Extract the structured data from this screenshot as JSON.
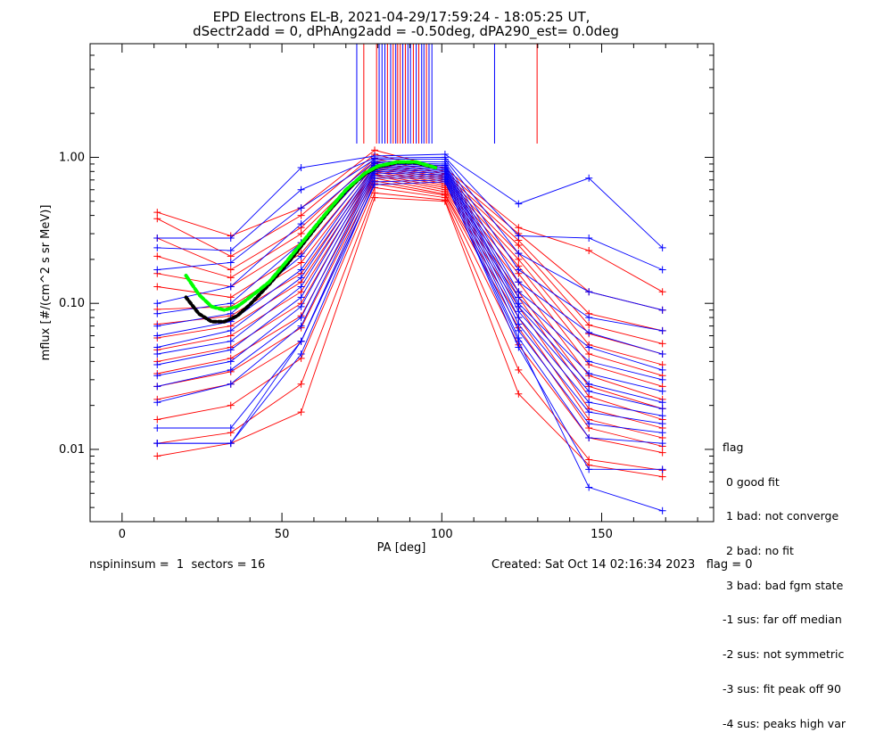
{
  "chart_data": {
    "type": "line",
    "title": "EPD Electrons EL-B, 2021-04-29/17:59:24 - 18:05:25 UT,",
    "subtitle": "dSectr2add = 0, dPhAng2add = -0.50deg, dPA290_est=   0.0deg",
    "xlabel": "PA [deg]",
    "ylabel": "mflux [#/(cm^2 s sr MeV)]",
    "xlim": [
      -10,
      185
    ],
    "ylim": [
      0.0032,
      6.0
    ],
    "yscale": "log",
    "x_ticks": [
      0,
      50,
      100,
      150
    ],
    "x_tick_labels": [
      "0",
      "50",
      "100",
      "150"
    ],
    "y_ticks": [
      0.01,
      0.1,
      1.0
    ],
    "y_tick_labels": [
      "0.01",
      "0.10",
      "1.00"
    ],
    "pa_bins": [
      11,
      34,
      56,
      79,
      101,
      124,
      146,
      169
    ],
    "series": [
      {
        "color": "#ff0000",
        "values": [
          0.42,
          0.29,
          0.45,
          1.12,
          0.84,
          0.33,
          0.23,
          0.12
        ]
      },
      {
        "color": "#ff0000",
        "values": [
          0.38,
          0.21,
          0.4,
          1.05,
          0.8,
          0.3,
          0.12,
          0.09
        ]
      },
      {
        "color": "#ff0000",
        "values": [
          0.28,
          0.17,
          0.33,
          0.98,
          0.77,
          0.27,
          0.085,
          0.065
        ]
      },
      {
        "color": "#ff0000",
        "values": [
          0.21,
          0.15,
          0.3,
          0.94,
          0.74,
          0.25,
          0.071,
          0.053
        ]
      },
      {
        "color": "#ff0000",
        "values": [
          0.16,
          0.13,
          0.26,
          0.91,
          0.72,
          0.22,
          0.062,
          0.045
        ]
      },
      {
        "color": "#ff0000",
        "values": [
          0.13,
          0.11,
          0.22,
          0.88,
          0.7,
          0.2,
          0.052,
          0.038
        ]
      },
      {
        "color": "#ff0000",
        "values": [
          0.091,
          0.095,
          0.19,
          0.85,
          0.68,
          0.18,
          0.045,
          0.032
        ]
      },
      {
        "color": "#ff0000",
        "values": [
          0.072,
          0.082,
          0.16,
          0.82,
          0.66,
          0.16,
          0.038,
          0.027
        ]
      },
      {
        "color": "#ff0000",
        "values": [
          0.058,
          0.07,
          0.14,
          0.8,
          0.64,
          0.14,
          0.032,
          0.022
        ]
      },
      {
        "color": "#ff0000",
        "values": [
          0.048,
          0.06,
          0.12,
          0.77,
          0.62,
          0.12,
          0.027,
          0.019
        ]
      },
      {
        "color": "#ff0000",
        "values": [
          0.04,
          0.05,
          0.1,
          0.75,
          0.6,
          0.11,
          0.023,
          0.016
        ]
      },
      {
        "color": "#ff0000",
        "values": [
          0.033,
          0.042,
          0.082,
          0.72,
          0.58,
          0.095,
          0.019,
          0.014
        ]
      },
      {
        "color": "#ff0000",
        "values": [
          0.027,
          0.034,
          0.068,
          0.69,
          0.56,
          0.08,
          0.016,
          0.012
        ]
      },
      {
        "color": "#ff0000",
        "values": [
          0.022,
          0.028,
          0.055,
          0.66,
          0.55,
          0.068,
          0.014,
          0.0105
        ]
      },
      {
        "color": "#ff0000",
        "values": [
          0.016,
          0.02,
          0.042,
          0.62,
          0.53,
          0.052,
          0.012,
          0.0095
        ]
      },
      {
        "color": "#ff0000",
        "values": [
          0.011,
          0.013,
          0.028,
          0.57,
          0.51,
          0.035,
          0.0085,
          0.0072
        ]
      },
      {
        "color": "#ff0000",
        "values": [
          0.009,
          0.011,
          0.018,
          0.53,
          0.5,
          0.024,
          0.0078,
          0.0065
        ]
      },
      {
        "color": "#0000ff",
        "values": [
          0.28,
          0.28,
          0.85,
          1.02,
          1.05,
          0.48,
          0.72,
          0.24
        ]
      },
      {
        "color": "#0000ff",
        "values": [
          0.24,
          0.23,
          0.6,
          0.99,
          1.0,
          0.29,
          0.28,
          0.17
        ]
      },
      {
        "color": "#0000ff",
        "values": [
          0.17,
          0.19,
          0.45,
          0.97,
          0.97,
          0.22,
          0.12,
          0.09
        ]
      },
      {
        "color": "#0000ff",
        "values": [
          0.1,
          0.13,
          0.35,
          0.94,
          0.93,
          0.17,
          0.08,
          0.065
        ]
      },
      {
        "color": "#0000ff",
        "values": [
          0.085,
          0.1,
          0.26,
          0.92,
          0.9,
          0.14,
          0.063,
          0.045
        ]
      },
      {
        "color": "#0000ff",
        "values": [
          0.07,
          0.085,
          0.21,
          0.9,
          0.88,
          0.12,
          0.05,
          0.035
        ]
      },
      {
        "color": "#0000ff",
        "values": [
          0.06,
          0.075,
          0.17,
          0.88,
          0.86,
          0.11,
          0.04,
          0.03
        ]
      },
      {
        "color": "#0000ff",
        "values": [
          0.05,
          0.065,
          0.15,
          0.86,
          0.84,
          0.1,
          0.033,
          0.025
        ]
      },
      {
        "color": "#0000ff",
        "values": [
          0.045,
          0.055,
          0.13,
          0.84,
          0.82,
          0.095,
          0.028,
          0.021
        ]
      },
      {
        "color": "#0000ff",
        "values": [
          0.038,
          0.048,
          0.11,
          0.82,
          0.8,
          0.088,
          0.025,
          0.019
        ]
      },
      {
        "color": "#0000ff",
        "values": [
          0.032,
          0.04,
          0.095,
          0.8,
          0.78,
          0.08,
          0.021,
          0.017
        ]
      },
      {
        "color": "#0000ff",
        "values": [
          0.027,
          0.035,
          0.08,
          0.78,
          0.76,
          0.072,
          0.018,
          0.015
        ]
      },
      {
        "color": "#0000ff",
        "values": [
          0.021,
          0.028,
          0.07,
          0.75,
          0.74,
          0.065,
          0.015,
          0.013
        ]
      },
      {
        "color": "#0000ff",
        "values": [
          0.014,
          0.014,
          0.055,
          0.72,
          0.72,
          0.058,
          0.012,
          0.011
        ]
      },
      {
        "color": "#0000ff",
        "values": [
          0.011,
          0.011,
          0.045,
          0.68,
          0.7,
          0.05,
          0.0073,
          0.0073
        ]
      },
      {
        "color": "#0000ff",
        "values": [
          0.011,
          0.011,
          0.055,
          0.65,
          0.68,
          0.055,
          0.0055,
          0.0038
        ]
      }
    ],
    "fit_curves": [
      {
        "color": "#00ff00",
        "x": [
          20,
          24,
          28,
          32,
          36,
          40,
          46,
          52,
          58,
          64,
          70,
          76,
          80,
          86,
          92,
          98
        ],
        "values": [
          0.155,
          0.115,
          0.095,
          0.09,
          0.095,
          0.11,
          0.14,
          0.2,
          0.29,
          0.42,
          0.6,
          0.78,
          0.87,
          0.93,
          0.93,
          0.85
        ]
      },
      {
        "color": "#000000",
        "x": [
          20,
          24,
          28,
          32,
          36,
          40,
          46,
          52,
          58,
          64,
          70,
          76,
          80,
          86,
          92,
          98
        ],
        "values": [
          0.11,
          0.085,
          0.075,
          0.075,
          0.082,
          0.098,
          0.135,
          0.19,
          0.28,
          0.41,
          0.59,
          0.77,
          0.86,
          0.92,
          0.92,
          0.85
        ]
      }
    ],
    "marker_lines": [
      {
        "x": 73.4,
        "color": "#0000ff"
      },
      {
        "x": 75.6,
        "color": "#ff0000"
      },
      {
        "x": 79.6,
        "color": "#ff0000"
      },
      {
        "x": 80.4,
        "color": "#0000ff"
      },
      {
        "x": 81.3,
        "color": "#0000ff"
      },
      {
        "x": 82.2,
        "color": "#0000ff"
      },
      {
        "x": 83.0,
        "color": "#ff0000"
      },
      {
        "x": 84.0,
        "color": "#0000ff"
      },
      {
        "x": 84.8,
        "color": "#ff0000"
      },
      {
        "x": 85.6,
        "color": "#0000ff"
      },
      {
        "x": 86.2,
        "color": "#ff0000"
      },
      {
        "x": 87.0,
        "color": "#ff0000"
      },
      {
        "x": 87.8,
        "color": "#0000ff"
      },
      {
        "x": 88.6,
        "color": "#ff0000"
      },
      {
        "x": 89.4,
        "color": "#0000ff"
      },
      {
        "x": 90.2,
        "color": "#0000ff"
      },
      {
        "x": 91.1,
        "color": "#ff0000"
      },
      {
        "x": 92.0,
        "color": "#0000ff"
      },
      {
        "x": 92.8,
        "color": "#ff0000"
      },
      {
        "x": 93.7,
        "color": "#0000ff"
      },
      {
        "x": 94.4,
        "color": "#0000ff"
      },
      {
        "x": 95.2,
        "color": "#ff0000"
      },
      {
        "x": 96.0,
        "color": "#0000ff"
      },
      {
        "x": 96.9,
        "color": "#0000ff"
      },
      {
        "x": 116.5,
        "color": "#0000ff"
      },
      {
        "x": 129.8,
        "color": "#ff0000"
      }
    ]
  },
  "legend": {
    "title": "flag",
    "items": [
      " 0 good fit",
      " 1 bad: not converge",
      " 2 bad: no fit",
      " 3 bad: bad fgm state",
      "-1 sus: far off median",
      "-2 sus: not symmetric",
      "-3 sus: fit peak off 90",
      "-4 sus: peaks high var"
    ]
  },
  "footer": {
    "left": "nspininsum =  1  sectors = 16",
    "right": "Created: Sat Oct 14 02:16:34 2023   flag = 0"
  }
}
